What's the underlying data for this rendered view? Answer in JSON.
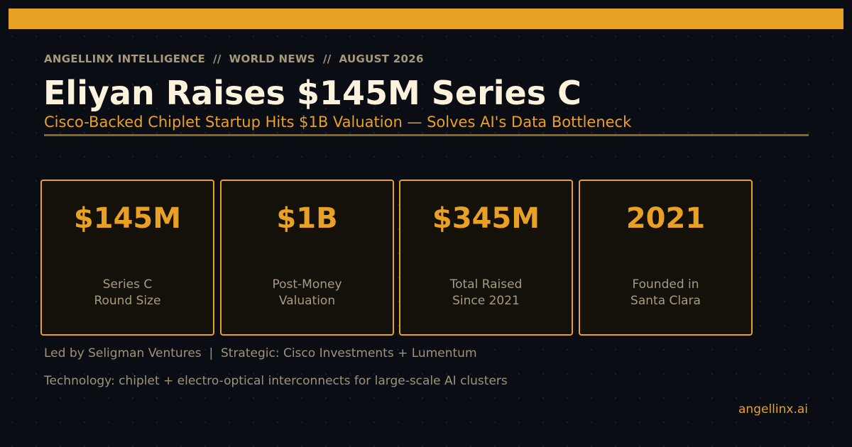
{
  "header": {
    "kicker": "ANGELLINX INTELLIGENCE  //  WORLD NEWS  //  AUGUST 2026",
    "title": "Eliyan Raises $145M Series C",
    "subtitle": "Cisco-Backed Chiplet Startup Hits $1B Valuation — Solves AI's Data Bottleneck"
  },
  "stats": [
    {
      "value": "$145M",
      "label": [
        "Series C",
        "Round Size"
      ]
    },
    {
      "value": "$1B",
      "label": [
        "Post-Money",
        "Valuation"
      ]
    },
    {
      "value": "$345M",
      "label": [
        "Total Raised",
        "Since 2021"
      ]
    },
    {
      "value": "2021",
      "label": [
        "Founded in",
        "Santa Clara"
      ]
    }
  ],
  "footer": {
    "lines": [
      "Led by Seligman Ventures  |  Strategic: Cisco Investments + Lumentum",
      "Technology: chiplet + electro-optical interconnects for large-scale AI clusters"
    ],
    "site": "angellinx.ai"
  }
}
